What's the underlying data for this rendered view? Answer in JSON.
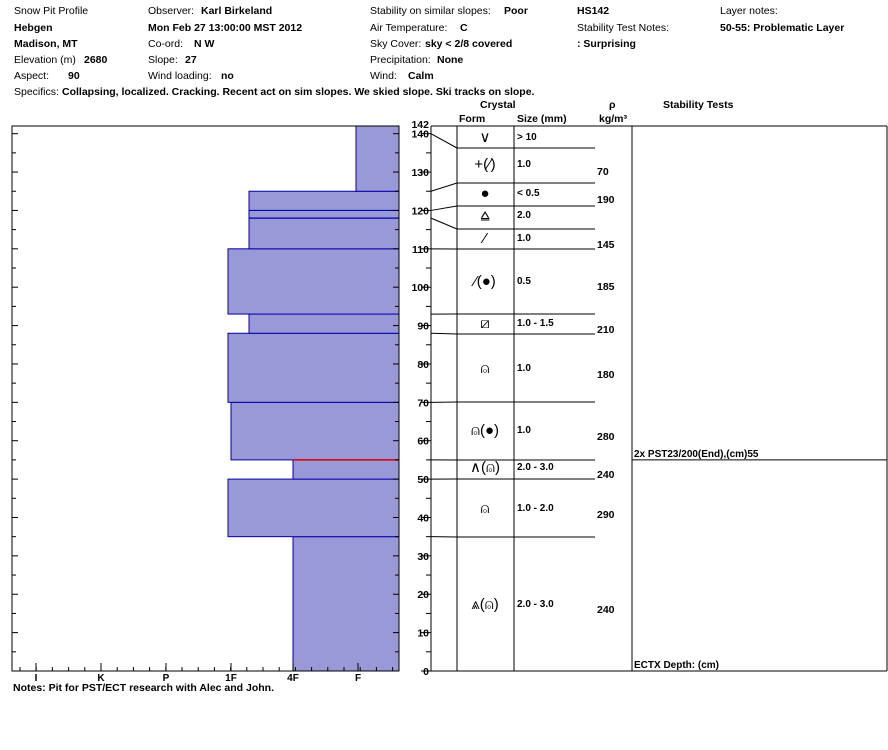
{
  "header": {
    "title": "Snow Pit Profile",
    "location": "Hebgen",
    "region": "Madison, MT",
    "elevation_label": "Elevation (m)",
    "elevation_value": "2680",
    "aspect_label": "Aspect:",
    "aspect_value": "90",
    "observer_label": "Observer:",
    "observer_value": "Karl Birkeland",
    "datetime": "Mon Feb 27 13:00:00 MST 2012",
    "coord_label": "Co-ord:",
    "coord_value": "N  W",
    "slope_label": "Slope:",
    "slope_value": "27",
    "wind_loading_label": "Wind loading:",
    "wind_loading_value": "no",
    "stability_label": "Stability on similar slopes:",
    "stability_value": "Poor",
    "air_temp_label": "Air Temperature:",
    "air_temp_value": "C",
    "sky_label": "Sky Cover:",
    "sky_value": "sky < 2/8 covered",
    "precip_label": "Precipitation:",
    "precip_value": "None",
    "wind_label": "Wind:",
    "wind_value": "Calm",
    "hs": "HS142",
    "stab_notes_label": "Stability Test Notes:",
    "stab_notes_value": ": Surprising",
    "layer_notes_label": "Layer notes:",
    "layer_notes_value": "50-55: Problematic Layer",
    "specifics_label": "Specifics:",
    "specifics_value": "Collapsing, localized. Cracking. Recent act on sim slopes. We skied slope. Ski tracks on slope."
  },
  "column_headers": {
    "crystal": "Crystal",
    "form": "Form",
    "size": "Size (mm)",
    "rho": "ρ",
    "rho_unit": "kg/m³",
    "stability_tests": "Stability Tests"
  },
  "notes": "Notes:  Pit for PST/ECT research with Alec and John.",
  "chart_data": {
    "type": "bar",
    "hand_hardness_scale": [
      "I",
      "K",
      "P",
      "1F",
      "4F",
      "F"
    ],
    "y_axis_ticks": [
      0,
      10,
      20,
      30,
      40,
      50,
      60,
      70,
      80,
      90,
      100,
      110,
      120,
      130,
      140
    ],
    "snow_depth_label": "142",
    "ylim": [
      0,
      142
    ],
    "hardness_profile": [
      {
        "bottom": 0,
        "top": 35,
        "hardness": "4F"
      },
      {
        "bottom": 35,
        "top": 50,
        "hardness": "1F+"
      },
      {
        "bottom": 50,
        "top": 55,
        "hardness": "4F"
      },
      {
        "bottom": 55,
        "top": 70,
        "hardness": "1F"
      },
      {
        "bottom": 70,
        "top": 88,
        "hardness": "1F+"
      },
      {
        "bottom": 88,
        "top": 93,
        "hardness": "1F-"
      },
      {
        "bottom": 93,
        "top": 110,
        "hardness": "1F+"
      },
      {
        "bottom": 110,
        "top": 125,
        "hardness": "1F-"
      },
      {
        "bottom": 125,
        "top": 142,
        "hardness": "F+"
      }
    ],
    "layer_boundaries": [
      0,
      35,
      50,
      55,
      70,
      88,
      93,
      110,
      118,
      120,
      125,
      142
    ],
    "weak_layer_depth": 55,
    "crystal_layers": [
      {
        "form": "∨",
        "size": "> 10",
        "center": 138
      },
      {
        "form": "+(⁄)",
        "size": "1.0",
        "center": 130
      },
      {
        "form": "●",
        "size": "< 0.5",
        "center": 124
      },
      {
        "form": "⩠",
        "size": "2.0",
        "center": 118
      },
      {
        "form": "⁄",
        "size": "1.0",
        "center": 113
      },
      {
        "form": "⁄(●)",
        "size": "0.5",
        "center": 101
      },
      {
        "form": "⧄",
        "size": "1.0 - 1.5",
        "center": 90.5
      },
      {
        "form": "⍝",
        "size": "1.0",
        "center": 79
      },
      {
        "form": "⍝(●)",
        "size": "1.0",
        "center": 62
      },
      {
        "form": "∧(⍝)",
        "size": "2.0 - 3.0",
        "center": 52.5
      },
      {
        "form": "⍝",
        "size": "1.0 - 2.0",
        "center": 42.5
      },
      {
        "form": "⩓(⍝)",
        "size": "2.0 - 3.0",
        "center": 17.5
      }
    ],
    "densities": [
      {
        "value": "70",
        "depth": 130
      },
      {
        "value": "190",
        "depth": 122
      },
      {
        "value": "145",
        "depth": 111
      },
      {
        "value": "185",
        "depth": 101
      },
      {
        "value": "210",
        "depth": 89
      },
      {
        "value": "180",
        "depth": 77
      },
      {
        "value": "280",
        "depth": 59
      },
      {
        "value": "240",
        "depth": 51
      },
      {
        "value": "290",
        "depth": 41
      },
      {
        "value": "240",
        "depth": 16
      }
    ],
    "stability_tests": [
      {
        "text": "2x PST23/200(End),(cm)55",
        "depth": 55
      },
      {
        "text": "ECTX   Depth: (cm)",
        "depth": 1
      }
    ],
    "colors": {
      "fill": "#9999d8",
      "stroke": "#0000aa",
      "weak_layer": "#dd0000"
    }
  }
}
